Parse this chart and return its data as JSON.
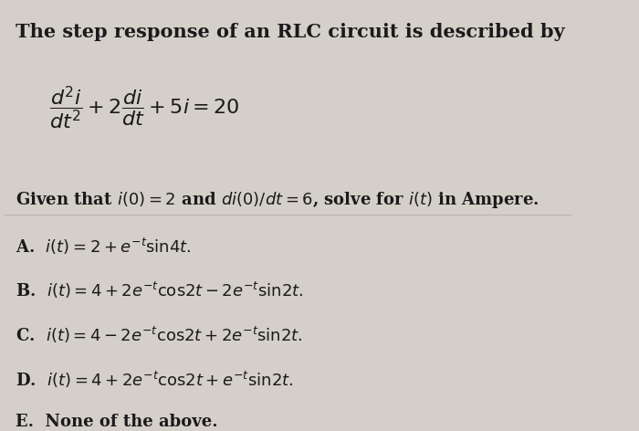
{
  "bg_color": "#d4cfc9",
  "text_color": "#1a1a1a",
  "title_text": "The step response of an RLC circuit is described by",
  "given_text": "Given that $i(0) = 2$ and $di(0)/dt = 6$, solve for $i(t)$ in Ampere.",
  "option_A": "A.  $i(t) = 2 + e^{-t}\\mathrm{sin}4t.$",
  "option_B": "B.  $i(t) = 4 + 2e^{-t}\\mathrm{cos}2t - 2e^{-t}\\mathrm{sin}2t.$",
  "option_C": "C.  $i(t) = 4 - 2e^{-t}\\mathrm{cos}2t + 2e^{-t}\\mathrm{sin}2t.$",
  "option_D": "D.  $i(t) = 4 + 2e^{-t}\\mathrm{cos}2t + e^{-t}\\mathrm{sin}2t.$",
  "option_E": "E.  None of the above.",
  "title_fontsize": 15,
  "body_fontsize": 13,
  "options_fontsize": 13,
  "eq_fontsize": 16
}
